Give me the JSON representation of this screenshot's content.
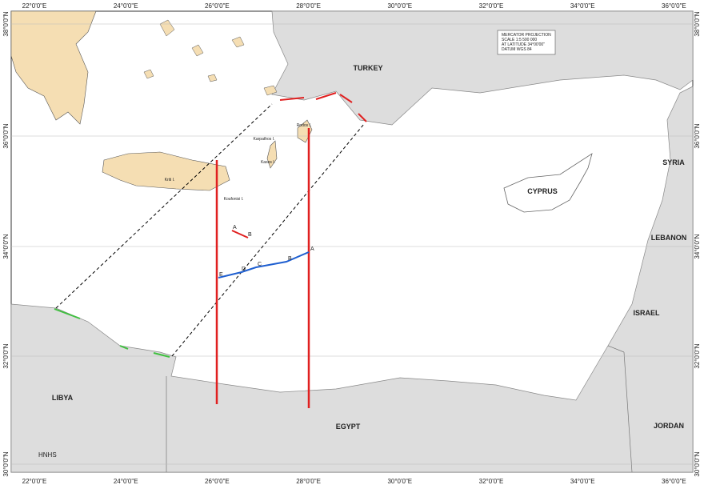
{
  "longitude_labels": [
    "22°0'0\"E",
    "24°0'0\"E",
    "26°0'0\"E",
    "28°0'0\"E",
    "30°0'0\"E",
    "32°0'0\"E",
    "34°0'0\"E",
    "36°0'0\"E"
  ],
  "latitude_labels": [
    "38°0'0\"N",
    "36°0'0\"N",
    "34°0'0\"N",
    "32°0'0\"N",
    "30°0'0\"N"
  ],
  "countries": [
    "TURKEY",
    "SYRIA",
    "CYPRUS",
    "LEBANON",
    "ISRAEL",
    "JORDAN",
    "EGYPT",
    "LIBYA"
  ],
  "islands": [
    "Kriti I.",
    "Kasos I.",
    "Karpathos I.",
    "Rodos I.",
    "Koufonisi I."
  ],
  "legend": [
    "MERCATOR PROJECTION",
    "SCALE 1:5 500 000",
    "AT LATITUDE 34°00'00\"",
    "DATUM WGS 84"
  ],
  "points": [
    "A",
    "B",
    "C",
    "D",
    "E"
  ],
  "small_points": [
    "A",
    "B"
  ],
  "source": "HNHS"
}
